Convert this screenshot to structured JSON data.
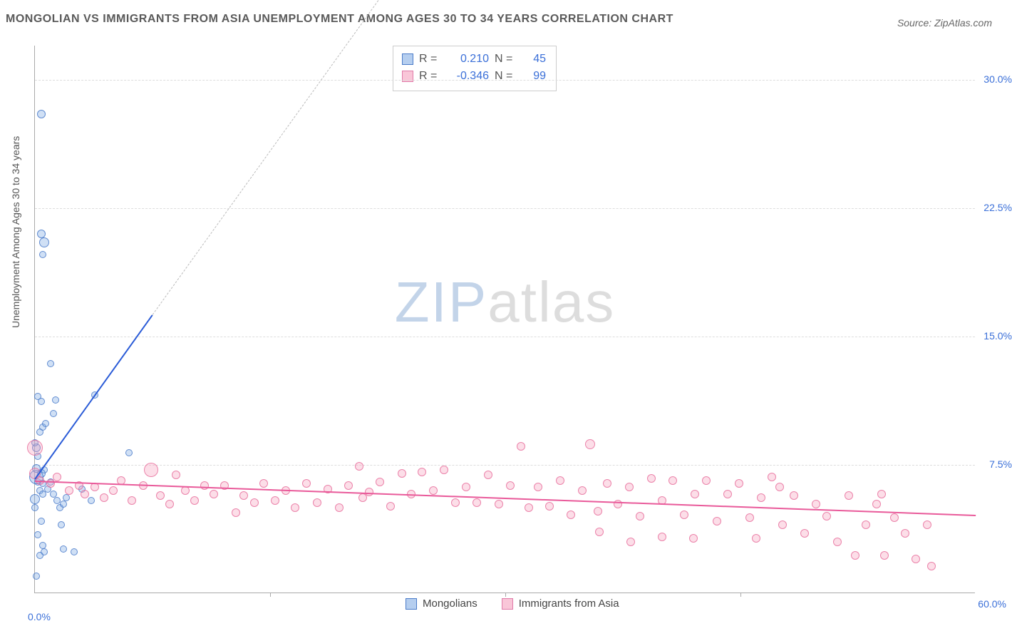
{
  "title": "MONGOLIAN VS IMMIGRANTS FROM ASIA UNEMPLOYMENT AMONG AGES 30 TO 34 YEARS CORRELATION CHART",
  "source_label": "Source:",
  "source_name": "ZipAtlas.com",
  "ylabel": "Unemployment Among Ages 30 to 34 years",
  "watermark_a": "ZIP",
  "watermark_b": "atlas",
  "chart": {
    "type": "scatter",
    "xlim": [
      0,
      60
    ],
    "ylim": [
      0,
      32
    ],
    "yticks": [
      7.5,
      15.0,
      22.5,
      30.0
    ],
    "ytick_labels": [
      "7.5%",
      "15.0%",
      "22.5%",
      "30.0%"
    ],
    "xticks_major": [
      15,
      30,
      45
    ],
    "x_origin_label": "0.0%",
    "x_max_label": "60.0%",
    "grid_color": "#dddddd",
    "background": "#ffffff",
    "series": [
      {
        "name": "Mongolians",
        "legend": "Mongolians",
        "color_fill": "rgba(120,165,225,0.35)",
        "color_stroke": "#4a7bc8",
        "R": "0.210",
        "N": "45",
        "trend": {
          "x1": 0.0,
          "y1": 6.7,
          "x2": 7.5,
          "y2": 16.3,
          "extrap_x": 30,
          "extrap_y": 45.0
        },
        "points": [
          [
            0.0,
            5.5,
            14
          ],
          [
            0.3,
            6.0,
            10
          ],
          [
            0.2,
            6.5,
            10
          ],
          [
            0.5,
            5.8,
            10
          ],
          [
            0.4,
            7.0,
            12
          ],
          [
            0.6,
            7.2,
            10
          ],
          [
            0.8,
            6.1,
            10
          ],
          [
            0.2,
            8.0,
            10
          ],
          [
            0.1,
            8.5,
            12
          ],
          [
            0.3,
            9.4,
            10
          ],
          [
            0.5,
            9.7,
            10
          ],
          [
            0.7,
            9.9,
            10
          ],
          [
            0.4,
            11.2,
            10
          ],
          [
            0.2,
            11.5,
            10
          ],
          [
            1.2,
            10.5,
            10
          ],
          [
            1.3,
            11.3,
            10
          ],
          [
            1.0,
            6.5,
            10
          ],
          [
            1.2,
            5.8,
            10
          ],
          [
            1.4,
            5.4,
            10
          ],
          [
            1.6,
            5.0,
            10
          ],
          [
            1.8,
            5.2,
            10
          ],
          [
            2.0,
            5.6,
            10
          ],
          [
            1.7,
            4.0,
            10
          ],
          [
            1.8,
            2.6,
            10
          ],
          [
            0.4,
            4.2,
            10
          ],
          [
            0.5,
            2.8,
            10
          ],
          [
            0.6,
            2.4,
            10
          ],
          [
            0.3,
            2.2,
            10
          ],
          [
            0.2,
            3.4,
            10
          ],
          [
            0.1,
            1.0,
            10
          ],
          [
            2.5,
            2.4,
            10
          ],
          [
            3.0,
            6.1,
            10
          ],
          [
            3.6,
            5.4,
            10
          ],
          [
            1.0,
            13.4,
            10
          ],
          [
            0.4,
            21.0,
            12
          ],
          [
            0.6,
            20.5,
            14
          ],
          [
            0.5,
            19.8,
            10
          ],
          [
            0.4,
            28.0,
            12
          ],
          [
            3.8,
            11.6,
            10
          ],
          [
            6.0,
            8.2,
            10
          ],
          [
            0.0,
            8.8,
            10
          ],
          [
            0.1,
            6.8,
            20
          ],
          [
            0.1,
            7.3,
            12
          ],
          [
            0.0,
            5.0,
            10
          ],
          [
            0.5,
            6.4,
            10
          ]
        ]
      },
      {
        "name": "Immigrants from Asia",
        "legend": "Immigrants from Asia",
        "color_fill": "rgba(245,160,190,0.35)",
        "color_stroke": "#e07aa8",
        "R": "-0.346",
        "N": "99",
        "trend": {
          "x1": 0.0,
          "y1": 6.6,
          "x2": 60.0,
          "y2": 4.6
        },
        "points": [
          [
            0.0,
            8.5,
            22
          ],
          [
            0.0,
            7.0,
            16
          ],
          [
            0.3,
            6.6,
            12
          ],
          [
            1.0,
            6.4,
            12
          ],
          [
            1.4,
            6.8,
            12
          ],
          [
            2.2,
            6.0,
            12
          ],
          [
            2.8,
            6.3,
            12
          ],
          [
            3.2,
            5.8,
            12
          ],
          [
            3.8,
            6.2,
            12
          ],
          [
            4.4,
            5.6,
            12
          ],
          [
            5.0,
            6.0,
            12
          ],
          [
            5.5,
            6.6,
            12
          ],
          [
            6.2,
            5.4,
            12
          ],
          [
            6.9,
            6.3,
            12
          ],
          [
            7.4,
            7.2,
            20
          ],
          [
            8.0,
            5.7,
            12
          ],
          [
            8.6,
            5.2,
            12
          ],
          [
            9.0,
            6.9,
            12
          ],
          [
            9.6,
            6.0,
            12
          ],
          [
            10.2,
            5.4,
            12
          ],
          [
            10.8,
            6.3,
            12
          ],
          [
            11.4,
            5.8,
            12
          ],
          [
            12.1,
            6.3,
            12
          ],
          [
            12.8,
            4.7,
            12
          ],
          [
            13.3,
            5.7,
            12
          ],
          [
            14.0,
            5.3,
            12
          ],
          [
            14.6,
            6.4,
            12
          ],
          [
            15.3,
            5.4,
            12
          ],
          [
            16.0,
            6.0,
            12
          ],
          [
            16.6,
            5.0,
            12
          ],
          [
            17.3,
            6.4,
            12
          ],
          [
            18.0,
            5.3,
            12
          ],
          [
            18.7,
            6.1,
            12
          ],
          [
            19.4,
            5.0,
            12
          ],
          [
            20.0,
            6.3,
            12
          ],
          [
            20.7,
            7.4,
            12
          ],
          [
            20.9,
            5.6,
            12
          ],
          [
            21.3,
            5.9,
            12
          ],
          [
            22.0,
            6.5,
            12
          ],
          [
            22.7,
            5.1,
            12
          ],
          [
            23.4,
            7.0,
            12
          ],
          [
            24.0,
            5.8,
            12
          ],
          [
            24.7,
            7.1,
            12
          ],
          [
            25.4,
            6.0,
            12
          ],
          [
            26.1,
            7.2,
            12
          ],
          [
            26.8,
            5.3,
            12
          ],
          [
            27.5,
            6.2,
            12
          ],
          [
            28.2,
            5.3,
            12
          ],
          [
            28.9,
            6.9,
            12
          ],
          [
            29.6,
            5.2,
            12
          ],
          [
            30.3,
            6.3,
            12
          ],
          [
            31.0,
            8.6,
            12
          ],
          [
            31.5,
            5.0,
            12
          ],
          [
            32.1,
            6.2,
            12
          ],
          [
            32.8,
            5.1,
            12
          ],
          [
            33.5,
            6.6,
            12
          ],
          [
            34.2,
            4.6,
            12
          ],
          [
            34.9,
            6.0,
            12
          ],
          [
            35.4,
            8.7,
            14
          ],
          [
            35.9,
            4.8,
            12
          ],
          [
            36.5,
            6.4,
            12
          ],
          [
            37.2,
            5.2,
            12
          ],
          [
            37.9,
            6.2,
            12
          ],
          [
            38.6,
            4.5,
            12
          ],
          [
            39.3,
            6.7,
            12
          ],
          [
            40.0,
            5.4,
            12
          ],
          [
            40.0,
            3.3,
            12
          ],
          [
            40.7,
            6.6,
            12
          ],
          [
            41.4,
            4.6,
            12
          ],
          [
            42.1,
            5.8,
            12
          ],
          [
            42.8,
            6.6,
            12
          ],
          [
            43.5,
            4.2,
            12
          ],
          [
            44.2,
            5.8,
            12
          ],
          [
            44.9,
            6.4,
            12
          ],
          [
            45.6,
            4.4,
            12
          ],
          [
            46.3,
            5.6,
            12
          ],
          [
            47.0,
            6.8,
            12
          ],
          [
            47.7,
            4.0,
            12
          ],
          [
            48.4,
            5.7,
            12
          ],
          [
            49.1,
            3.5,
            12
          ],
          [
            49.8,
            5.2,
            12
          ],
          [
            50.5,
            4.5,
            12
          ],
          [
            51.2,
            3.0,
            12
          ],
          [
            51.9,
            5.7,
            12
          ],
          [
            52.3,
            2.2,
            12
          ],
          [
            53.0,
            4.0,
            12
          ],
          [
            53.7,
            5.2,
            12
          ],
          [
            54.2,
            2.2,
            12
          ],
          [
            54.8,
            4.4,
            12
          ],
          [
            55.5,
            3.5,
            12
          ],
          [
            56.2,
            2.0,
            12
          ],
          [
            56.9,
            4.0,
            12
          ],
          [
            57.2,
            1.6,
            12
          ],
          [
            54.0,
            5.8,
            12
          ],
          [
            42.0,
            3.2,
            12
          ],
          [
            36.0,
            3.6,
            12
          ],
          [
            38.0,
            3.0,
            12
          ],
          [
            47.5,
            6.2,
            12
          ],
          [
            46.0,
            3.2,
            12
          ]
        ]
      }
    ]
  },
  "stat_labels": {
    "R": "R =",
    "N": "N ="
  }
}
